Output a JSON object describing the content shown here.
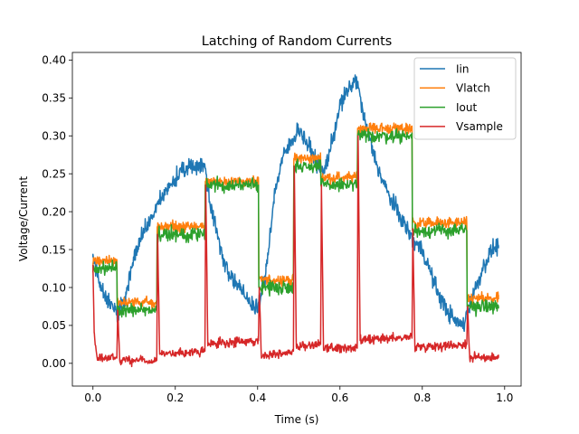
{
  "chart_data": {
    "type": "line",
    "title": "Latching of Random Currents",
    "xlabel": "Time (s)",
    "ylabel": "Voltage/Current",
    "xlim": [
      -0.05,
      1.04
    ],
    "ylim": [
      -0.03,
      0.41
    ],
    "x_ticks": [
      0.0,
      0.2,
      0.4,
      0.6,
      0.8,
      1.0
    ],
    "x_tick_labels": [
      "0.0",
      "0.2",
      "0.4",
      "0.6",
      "0.8",
      "1.0"
    ],
    "y_ticks": [
      0.0,
      0.05,
      0.1,
      0.15,
      0.2,
      0.25,
      0.3,
      0.35,
      0.4
    ],
    "y_tick_labels": [
      "0.00",
      "0.05",
      "0.10",
      "0.15",
      "0.20",
      "0.25",
      "0.30",
      "0.35",
      "0.40"
    ],
    "grid": false,
    "legend_position": "top-right",
    "series": [
      {
        "name": "Iin",
        "color": "#1f77b4",
        "noise": 0.008,
        "x": [
          0.0,
          0.02,
          0.04,
          0.06,
          0.08,
          0.1,
          0.12,
          0.15,
          0.18,
          0.21,
          0.24,
          0.27,
          0.29,
          0.31,
          0.33,
          0.36,
          0.4,
          0.42,
          0.44,
          0.46,
          0.48,
          0.5,
          0.52,
          0.54,
          0.56,
          0.58,
          0.6,
          0.62,
          0.64,
          0.66,
          0.68,
          0.7,
          0.72,
          0.75,
          0.78,
          0.8,
          0.82,
          0.84,
          0.86,
          0.88,
          0.9,
          0.91,
          0.93,
          0.95,
          0.97,
          0.985
        ],
        "y": [
          0.14,
          0.1,
          0.08,
          0.065,
          0.09,
          0.14,
          0.17,
          0.2,
          0.23,
          0.25,
          0.26,
          0.262,
          0.2,
          0.15,
          0.12,
          0.095,
          0.07,
          0.12,
          0.22,
          0.27,
          0.29,
          0.31,
          0.29,
          0.27,
          0.25,
          0.29,
          0.34,
          0.36,
          0.375,
          0.32,
          0.28,
          0.245,
          0.22,
          0.19,
          0.16,
          0.15,
          0.12,
          0.09,
          0.07,
          0.055,
          0.05,
          0.07,
          0.1,
          0.13,
          0.15,
          0.155
        ]
      },
      {
        "name": "Vlatch",
        "color": "#ff7f0e",
        "noise": 0.005,
        "x": [
          0.0,
          0.001,
          0.058,
          0.059,
          0.155,
          0.156,
          0.272,
          0.273,
          0.402,
          0.403,
          0.487,
          0.488,
          0.553,
          0.554,
          0.642,
          0.643,
          0.775,
          0.776,
          0.908,
          0.909,
          0.985
        ],
        "y": [
          0.13,
          0.135,
          0.135,
          0.08,
          0.08,
          0.18,
          0.18,
          0.24,
          0.24,
          0.11,
          0.11,
          0.27,
          0.27,
          0.245,
          0.245,
          0.31,
          0.31,
          0.185,
          0.185,
          0.085,
          0.085
        ]
      },
      {
        "name": "Iout",
        "color": "#2ca02c",
        "noise": 0.006,
        "x": [
          0.0,
          0.001,
          0.058,
          0.059,
          0.155,
          0.156,
          0.272,
          0.273,
          0.402,
          0.403,
          0.487,
          0.488,
          0.553,
          0.554,
          0.642,
          0.643,
          0.775,
          0.776,
          0.908,
          0.909,
          0.985
        ],
        "y": [
          0.12,
          0.125,
          0.125,
          0.07,
          0.07,
          0.17,
          0.17,
          0.235,
          0.235,
          0.1,
          0.1,
          0.26,
          0.26,
          0.235,
          0.235,
          0.3,
          0.3,
          0.175,
          0.175,
          0.075,
          0.075
        ]
      },
      {
        "name": "Vsample",
        "color": "#d62728",
        "noise": 0.004,
        "x": [
          0.0,
          0.003,
          0.01,
          0.058,
          0.06,
          0.065,
          0.155,
          0.157,
          0.162,
          0.272,
          0.274,
          0.279,
          0.402,
          0.404,
          0.409,
          0.487,
          0.489,
          0.494,
          0.553,
          0.555,
          0.56,
          0.642,
          0.644,
          0.649,
          0.775,
          0.777,
          0.782,
          0.908,
          0.91,
          0.915,
          0.985
        ],
        "y": [
          0.13,
          0.04,
          0.008,
          0.008,
          0.07,
          0.004,
          0.004,
          0.17,
          0.012,
          0.016,
          0.235,
          0.025,
          0.03,
          0.1,
          0.01,
          0.016,
          0.26,
          0.022,
          0.025,
          0.235,
          0.02,
          0.02,
          0.3,
          0.03,
          0.035,
          0.175,
          0.022,
          0.025,
          0.075,
          0.008,
          0.008
        ]
      }
    ]
  }
}
